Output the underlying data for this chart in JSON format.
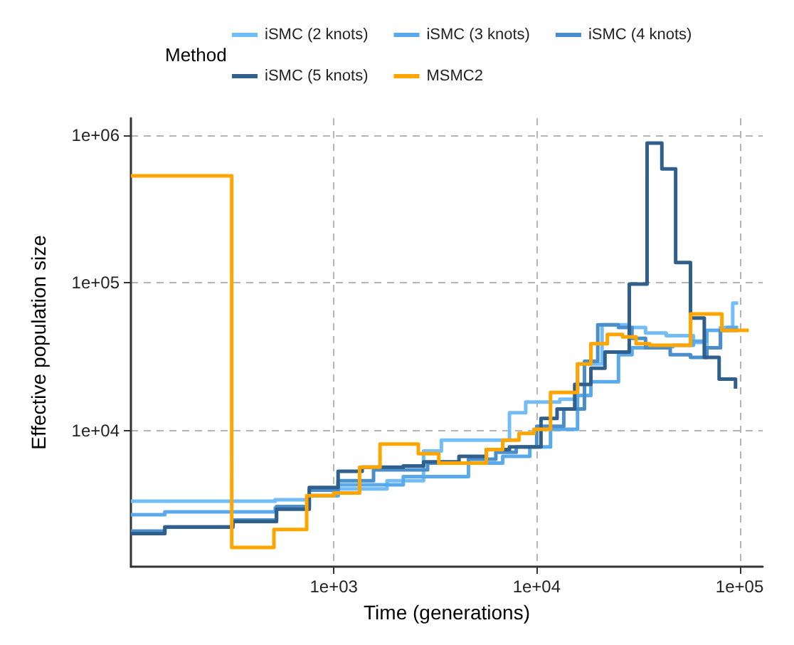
{
  "chart_data": {
    "type": "step",
    "xlabel": "Time (generations)",
    "ylabel": "Effective population size",
    "legend_title": "Method",
    "legend": "top",
    "grid": true,
    "log": "xy",
    "line_style": "solid",
    "marker": "none",
    "xlim": [
      100,
      130000
    ],
    "ylim": [
      1200,
      1300000
    ],
    "xticks": [
      {
        "value": 1000,
        "label": "1e+03"
      },
      {
        "value": 10000,
        "label": "1e+04"
      },
      {
        "value": 100000,
        "label": "1e+05"
      }
    ],
    "yticks": [
      {
        "value": 10000,
        "label": "1e+04"
      },
      {
        "value": 100000,
        "label": "1e+05"
      },
      {
        "value": 1000000,
        "label": "1e+06"
      }
    ],
    "series": [
      {
        "name": "iSMC (2 knots)",
        "color": "#73bdf6",
        "x": [
          100,
          514,
          745,
          1050,
          1830,
          2770,
          3390,
          7340,
          8830,
          13000,
          15900,
          21000,
          28600,
          34400,
          43500,
          59200,
          69000,
          80500,
          92500,
          98400
        ],
        "values": [
          3330,
          3400,
          3630,
          4030,
          4580,
          7280,
          8630,
          13200,
          15600,
          16300,
          28200,
          52000,
          49800,
          45800,
          43900,
          39500,
          36300,
          49800,
          72800,
          72800
        ]
      },
      {
        "name": "iSMC (3 knots)",
        "color": "#5aa9ea",
        "x": [
          100,
          147,
          514,
          745,
          1050,
          2200,
          4610,
          6800,
          9250,
          11700,
          15900,
          18500,
          25300,
          29500,
          35500,
          46900,
          59200,
          69000,
          87000,
          98400
        ],
        "values": [
          2700,
          2820,
          3000,
          3630,
          4300,
          4880,
          6030,
          6690,
          7760,
          10200,
          17300,
          21400,
          32600,
          36300,
          37000,
          37800,
          40300,
          47700,
          49800,
          49800
        ]
      },
      {
        "name": "iSMC (4 knots)",
        "color": "#4a8fcc",
        "x": [
          100,
          147,
          318,
          522,
          757,
          1050,
          1570,
          2900,
          4610,
          6290,
          7930,
          10000,
          13600,
          17200,
          20000,
          25300,
          29500,
          34400,
          45500,
          57300,
          69000,
          80500,
          98400
        ],
        "values": [
          2090,
          2230,
          2480,
          3060,
          3950,
          4580,
          5420,
          6030,
          6410,
          7130,
          7760,
          10700,
          14000,
          29400,
          52000,
          49800,
          42100,
          36300,
          32600,
          31300,
          36300,
          47700,
          47700
        ]
      },
      {
        "name": "iSMC (5 knots)",
        "color": "#2f5f8a",
        "x": [
          100,
          147,
          318,
          522,
          757,
          1050,
          1380,
          2200,
          2770,
          4140,
          5650,
          7340,
          10500,
          12600,
          15400,
          18500,
          21700,
          28600,
          35000,
          41400,
          48400,
          57300,
          67000,
          79300,
          95500
        ],
        "values": [
          2010,
          2230,
          2430,
          2940,
          4120,
          5310,
          5650,
          5770,
          6150,
          6690,
          7440,
          7760,
          12100,
          14000,
          20500,
          26400,
          34000,
          98000,
          881000,
          590000,
          137000,
          57700,
          31300,
          22300,
          19200
        ]
      },
      {
        "name": "MSMC2",
        "color": "#ffa500",
        "x": [
          100,
          314,
          507,
          735,
          1000,
          1340,
          1690,
          2610,
          3290,
          5650,
          6800,
          8180,
          9700,
          11700,
          15900,
          18500,
          22300,
          26500,
          30900,
          36100,
          57300,
          81800,
          111000
        ],
        "values": [
          530000,
          1620,
          2140,
          3630,
          3780,
          5650,
          8100,
          6980,
          6030,
          7440,
          8630,
          9580,
          10200,
          18100,
          28200,
          38700,
          44800,
          43000,
          38700,
          37800,
          61500,
          47700,
          47700
        ]
      }
    ]
  }
}
